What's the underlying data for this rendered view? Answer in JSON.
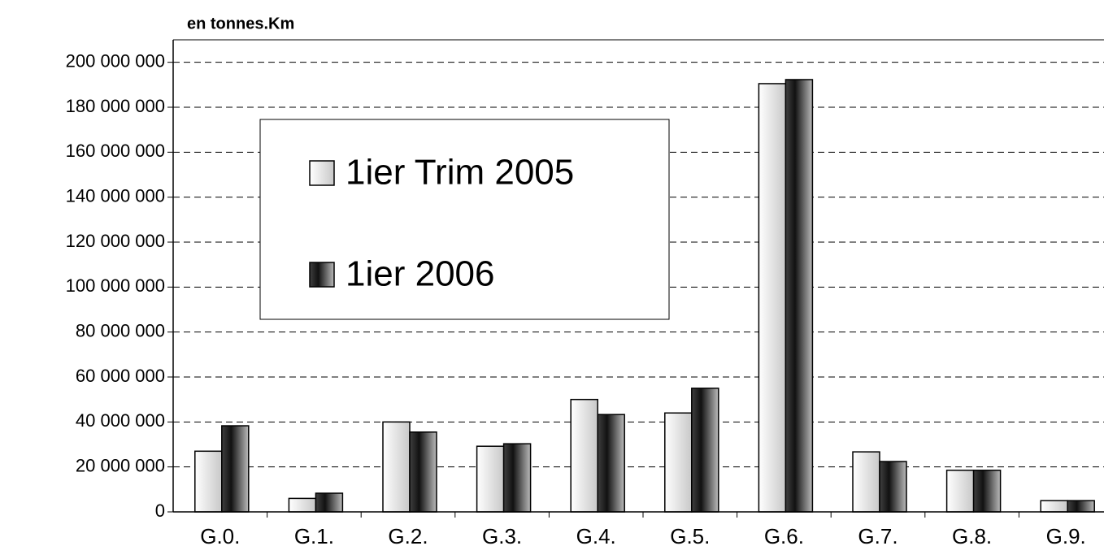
{
  "chart_data": {
    "type": "bar",
    "y_axis_label": "en tonnes.Km",
    "categories": [
      "G.0.",
      "G.1.",
      "G.2.",
      "G.3.",
      "G.4.",
      "G.5.",
      "G.6.",
      "G.7.",
      "G.8.",
      "G.9."
    ],
    "series": [
      {
        "name": "1ier Trim 2005",
        "color": "#c8c8c8",
        "values": [
          27000000,
          6000000,
          40000000,
          29200000,
          50000000,
          44000000,
          190500000,
          26700000,
          18500000,
          5000000
        ]
      },
      {
        "name": "1ier 2006",
        "color": "#404040",
        "values": [
          38300000,
          8300000,
          35500000,
          30300000,
          43300000,
          55000000,
          192300000,
          22400000,
          18500000,
          5000000
        ]
      }
    ],
    "ylim": [
      0,
      210000000
    ],
    "yticks": [
      0,
      {
        "value": 20000000,
        "label": "20 000 000"
      },
      {
        "value": 40000000,
        "label": "40 000 000"
      },
      {
        "value": 60000000,
        "label": "60 000 000"
      },
      {
        "value": 80000000,
        "label": "80 000 000"
      },
      {
        "value": 100000000,
        "label": "100 000 000"
      },
      {
        "value": 120000000,
        "label": "120 000 000"
      },
      {
        "value": 140000000,
        "label": "140 000 000"
      },
      {
        "value": 160000000,
        "label": "160 000 000"
      },
      {
        "value": 180000000,
        "label": "180 000 000"
      },
      {
        "value": 200000000,
        "label": "200 000 000"
      }
    ],
    "grid": true
  }
}
